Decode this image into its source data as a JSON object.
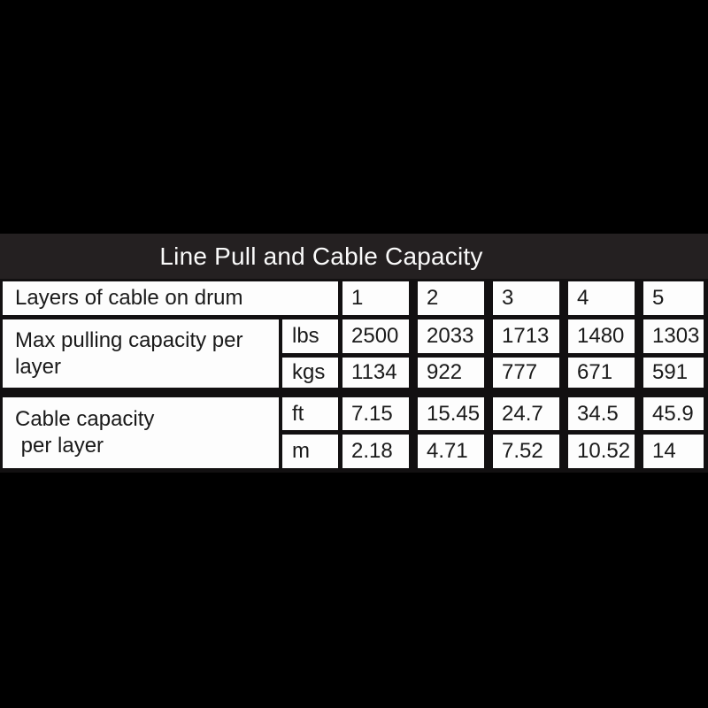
{
  "page": {
    "background_color": "#000000"
  },
  "title": "Line Pull and Cable Capacity",
  "colors": {
    "title_band_bg": "#242021",
    "title_text": "#fafafa",
    "cell_bg": "#fdfdfd",
    "cell_text": "#1a1a1a",
    "table_border": "#121011"
  },
  "table": {
    "header": {
      "label": "Layers of cable on drum",
      "columns": [
        "1",
        "2",
        "3",
        "4",
        "5"
      ]
    },
    "groups": [
      {
        "label": "Max pulling capacity per\nlayer",
        "rows": [
          {
            "unit": "lbs",
            "values": [
              "2500",
              "2033",
              "1713",
              "1480",
              "1303"
            ]
          },
          {
            "unit": "kgs",
            "values": [
              "1134",
              "922",
              "777",
              "671",
              "591"
            ]
          }
        ]
      },
      {
        "label": "Cable capacity\n per layer",
        "rows": [
          {
            "unit": "ft",
            "values": [
              "7.15",
              "15.45",
              "24.7",
              "34.5",
              "45.9"
            ]
          },
          {
            "unit": "m",
            "values": [
              "2.18",
              "4.71",
              "7.52",
              "10.52",
              "14"
            ]
          }
        ]
      }
    ]
  }
}
